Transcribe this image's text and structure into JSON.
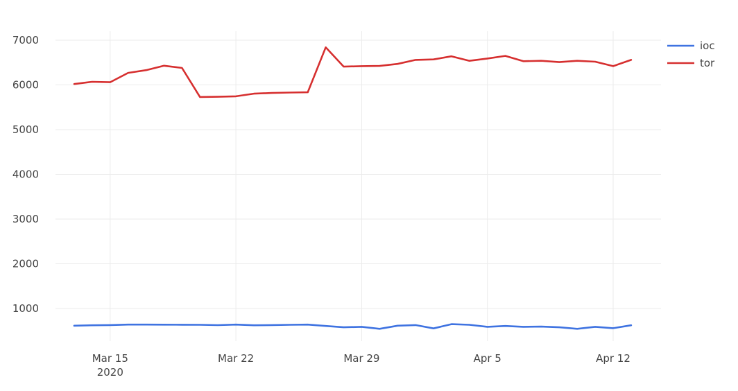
{
  "chart_data": {
    "type": "line",
    "title": "",
    "xlabel": "",
    "ylabel": "",
    "x": [
      "2020-03-13",
      "2020-03-14",
      "2020-03-15",
      "2020-03-16",
      "2020-03-17",
      "2020-03-18",
      "2020-03-19",
      "2020-03-20",
      "2020-03-21",
      "2020-03-22",
      "2020-03-23",
      "2020-03-24",
      "2020-03-25",
      "2020-03-26",
      "2020-03-27",
      "2020-03-28",
      "2020-03-29",
      "2020-03-30",
      "2020-03-31",
      "2020-04-01",
      "2020-04-02",
      "2020-04-03",
      "2020-04-04",
      "2020-04-05",
      "2020-04-06",
      "2020-04-07",
      "2020-04-08",
      "2020-04-09",
      "2020-04-10",
      "2020-04-11",
      "2020-04-12",
      "2020-04-13"
    ],
    "series": [
      {
        "name": "ioc",
        "color": "#3f73e1",
        "values": [
          615,
          625,
          630,
          640,
          640,
          638,
          637,
          635,
          628,
          640,
          625,
          630,
          635,
          640,
          610,
          580,
          590,
          545,
          615,
          630,
          555,
          650,
          635,
          590,
          610,
          590,
          595,
          580,
          545,
          590,
          560,
          625
        ]
      },
      {
        "name": "tor",
        "color": "#d62f2f",
        "values": [
          6020,
          6070,
          6060,
          6270,
          6330,
          6430,
          6380,
          5730,
          5735,
          5745,
          5805,
          5820,
          5830,
          5835,
          6840,
          6410,
          6420,
          6425,
          6470,
          6560,
          6570,
          6640,
          6540,
          6590,
          6650,
          6530,
          6540,
          6510,
          6540,
          6520,
          6420,
          6560
        ]
      }
    ],
    "xticks": [
      {
        "date": "2020-03-15",
        "label": "Mar 15",
        "sublabel": "2020"
      },
      {
        "date": "2020-03-22",
        "label": "Mar 22",
        "sublabel": ""
      },
      {
        "date": "2020-03-29",
        "label": "Mar 29",
        "sublabel": ""
      },
      {
        "date": "2020-04-05",
        "label": "Apr 5",
        "sublabel": ""
      },
      {
        "date": "2020-04-12",
        "label": "Apr 12",
        "sublabel": ""
      }
    ],
    "yticks": [
      1000,
      2000,
      3000,
      4000,
      5000,
      6000,
      7000
    ],
    "xlim": [
      "2020-03-13",
      "2020-04-13"
    ],
    "ylim": [
      0,
      7000
    ],
    "grid": true,
    "legend_placement": "top-right"
  }
}
